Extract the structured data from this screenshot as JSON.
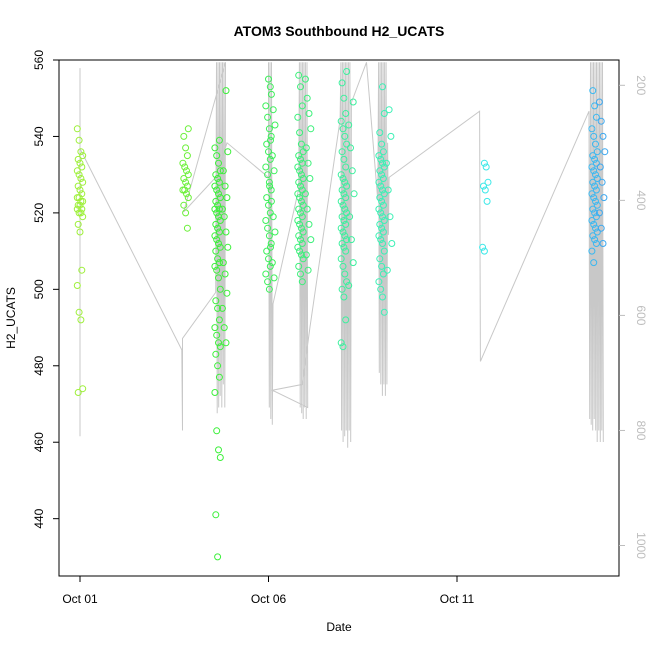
{
  "chart_data": {
    "type": "scatter",
    "title": "ATOM3 Southbound H2_UCATS",
    "xlabel": "Date",
    "ylabel": "H2_UCATS",
    "x_axis": {
      "unit": "days",
      "range": [
        "Sep 30 13:00",
        "Oct 15 23:00"
      ],
      "ticks": [
        {
          "label": "Oct 01",
          "day": 1
        },
        {
          "label": "Oct 06",
          "day": 6
        },
        {
          "label": "Oct 11",
          "day": 11
        }
      ]
    },
    "y_axis": {
      "range": [
        425,
        560
      ],
      "ticks": [
        440,
        460,
        480,
        500,
        520,
        540,
        560
      ]
    },
    "y_axis_right": {
      "label": "",
      "reversed": true,
      "range": [
        1053,
        156
      ],
      "ticks": [
        200,
        400,
        600,
        800,
        1000
      ]
    },
    "point_style": "open-circle",
    "color_scale": "color varies by date (yellow-green → green → cyan → blue)",
    "point_groups": [
      {
        "x": 1.0,
        "color": "#9ef03a",
        "y": [
          542,
          539,
          536,
          535,
          534,
          533,
          532,
          531,
          530,
          529,
          528,
          527,
          526,
          525,
          524,
          524,
          523,
          523,
          522,
          522,
          521,
          521,
          520,
          520,
          519,
          517,
          515,
          505,
          501,
          494,
          492,
          474,
          473
        ]
      },
      {
        "x": 3.8,
        "color": "#6cf03a",
        "y": [
          542,
          540,
          537,
          535,
          533,
          532,
          531,
          530,
          529,
          528,
          527,
          526,
          526,
          525,
          524,
          522,
          520,
          516
        ]
      },
      {
        "x": 4.65,
        "color": "#3cf03a",
        "y": [
          539,
          537,
          535,
          533,
          531,
          530,
          529,
          528,
          527,
          526,
          525,
          524,
          523,
          522,
          521,
          521,
          520,
          519,
          518,
          517,
          516,
          515,
          514,
          513,
          512,
          511,
          510,
          508,
          507,
          506,
          505,
          503,
          500,
          497,
          495,
          492,
          490,
          488,
          486,
          485,
          483,
          480,
          477,
          473,
          463,
          458,
          456,
          441,
          430
        ]
      },
      {
        "x": 4.85,
        "color": "#3cf03a",
        "y": [
          552,
          536,
          531,
          527,
          524,
          521,
          519,
          515,
          511,
          507,
          504,
          499,
          495,
          490,
          486
        ]
      },
      {
        "x": 6.0,
        "color": "#3cf05a",
        "y": [
          555,
          553,
          548,
          545,
          542,
          540,
          538,
          536,
          534,
          532,
          530,
          528,
          526,
          524,
          522,
          520,
          518,
          516,
          514,
          512,
          510,
          508,
          506,
          504,
          502,
          500
        ]
      },
      {
        "x": 6.1,
        "color": "#3cf05a",
        "y": [
          551,
          547,
          543,
          539,
          535,
          531,
          527,
          523,
          519,
          515,
          511,
          507,
          503
        ]
      },
      {
        "x": 6.85,
        "color": "#3cf07a",
        "y": [
          556,
          553,
          548,
          545,
          541,
          538,
          536,
          535,
          534,
          533,
          532,
          531,
          530,
          529,
          528,
          527,
          526,
          525,
          524,
          523,
          522,
          521,
          520,
          519,
          518,
          517,
          516,
          515,
          514,
          513,
          512,
          511,
          510,
          509,
          508,
          506,
          504,
          502
        ]
      },
      {
        "x": 7.05,
        "color": "#3cf07a",
        "y": [
          555,
          550,
          546,
          542,
          537,
          533,
          529,
          525,
          521,
          517,
          513,
          509,
          505
        ]
      },
      {
        "x": 8.0,
        "color": "#3cf09e",
        "y": [
          557,
          554,
          550,
          546,
          544,
          542,
          540,
          538,
          536,
          534,
          532,
          530,
          529,
          528,
          527,
          526,
          525,
          524,
          523,
          522,
          521,
          520,
          519,
          518,
          517,
          516,
          515,
          514,
          513,
          512,
          511,
          510,
          508,
          506,
          504,
          502,
          500,
          498,
          492,
          486,
          485
        ]
      },
      {
        "x": 8.2,
        "color": "#3cf09e",
        "y": [
          549,
          543,
          537,
          531,
          525,
          519,
          513,
          507,
          501
        ]
      },
      {
        "x": 9.0,
        "color": "#3cf0b5",
        "y": [
          553,
          546,
          541,
          538,
          536,
          535,
          534,
          533,
          532,
          531,
          530,
          529,
          528,
          527,
          526,
          525,
          524,
          523,
          522,
          521,
          520,
          519,
          518,
          517,
          516,
          515,
          514,
          513,
          512,
          510,
          508,
          506,
          504,
          502,
          500,
          498,
          494
        ]
      },
      {
        "x": 9.2,
        "color": "#3cf0b5",
        "y": [
          547,
          540,
          533,
          526,
          519,
          512,
          505
        ]
      },
      {
        "x": 11.75,
        "color": "#3ce8e8",
        "y": [
          533,
          532,
          528,
          527,
          526,
          523,
          511,
          510
        ]
      },
      {
        "x": 14.65,
        "color": "#3cb8f0",
        "y": [
          552,
          548,
          545,
          542,
          540,
          538,
          536,
          535,
          534,
          533,
          532,
          531,
          530,
          529,
          528,
          527,
          526,
          525,
          524,
          523,
          522,
          521,
          520,
          519,
          518,
          517,
          516,
          515,
          514,
          513,
          512,
          510,
          507
        ]
      },
      {
        "x": 14.85,
        "color": "#3ca8f0",
        "y": [
          549,
          544,
          540,
          536,
          532,
          528,
          524,
          520,
          516,
          512
        ]
      }
    ],
    "pressure_trace": {
      "color": "#c8c8c8",
      "axis": "right",
      "description": "aircraft pressure profile (hPa) over time",
      "vertices": [
        [
          1.0,
          170
        ],
        [
          1.0,
          810
        ],
        [
          1.0,
          310
        ],
        [
          3.7,
          660
        ],
        [
          3.72,
          800
        ],
        [
          3.72,
          640
        ],
        [
          4.6,
          560
        ],
        [
          4.62,
          160
        ],
        [
          4.64,
          770
        ],
        [
          4.66,
          160
        ],
        [
          4.68,
          760
        ],
        [
          4.7,
          160
        ],
        [
          4.72,
          740
        ],
        [
          4.74,
          160
        ],
        [
          4.76,
          760
        ],
        [
          4.78,
          160
        ],
        [
          4.8,
          720
        ],
        [
          4.82,
          160
        ],
        [
          4.84,
          760
        ],
        [
          4.86,
          160
        ],
        [
          3.75,
          420
        ],
        [
          4.6,
          360
        ],
        [
          4.9,
          300
        ],
        [
          6.0,
          360
        ],
        [
          6.0,
          160
        ],
        [
          6.02,
          760
        ],
        [
          6.04,
          160
        ],
        [
          6.06,
          780
        ],
        [
          6.08,
          160
        ],
        [
          6.1,
          790
        ],
        [
          6.12,
          580
        ],
        [
          6.8,
          380
        ],
        [
          6.82,
          160
        ],
        [
          6.84,
          760
        ],
        [
          6.86,
          160
        ],
        [
          6.88,
          770
        ],
        [
          6.9,
          160
        ],
        [
          6.92,
          780
        ],
        [
          6.94,
          160
        ],
        [
          6.96,
          760
        ],
        [
          6.98,
          160
        ],
        [
          7.0,
          780
        ],
        [
          7.02,
          160
        ],
        [
          7.04,
          760
        ],
        [
          6.1,
          730
        ],
        [
          6.9,
          720
        ],
        [
          7.1,
          620
        ],
        [
          7.9,
          260
        ],
        [
          7.92,
          160
        ],
        [
          7.94,
          800
        ],
        [
          7.96,
          160
        ],
        [
          7.98,
          820
        ],
        [
          8.0,
          160
        ],
        [
          8.02,
          810
        ],
        [
          8.04,
          160
        ],
        [
          8.06,
          800
        ],
        [
          8.08,
          160
        ],
        [
          8.1,
          830
        ],
        [
          8.12,
          160
        ],
        [
          8.14,
          800
        ],
        [
          8.16,
          160
        ],
        [
          8.18,
          820
        ],
        [
          8.2,
          230
        ],
        [
          8.6,
          160
        ],
        [
          8.9,
          400
        ],
        [
          8.92,
          160
        ],
        [
          8.94,
          700
        ],
        [
          8.96,
          160
        ],
        [
          8.98,
          720
        ],
        [
          9.0,
          160
        ],
        [
          9.02,
          740
        ],
        [
          9.04,
          160
        ],
        [
          9.06,
          720
        ],
        [
          9.08,
          160
        ],
        [
          9.1,
          740
        ],
        [
          9.12,
          160
        ],
        [
          9.14,
          720
        ],
        [
          9.16,
          300
        ],
        [
          9.18,
          460
        ],
        [
          9.2,
          360
        ],
        [
          11.6,
          245
        ],
        [
          11.62,
          680
        ],
        [
          14.5,
          245
        ],
        [
          14.52,
          780
        ],
        [
          14.54,
          160
        ],
        [
          14.56,
          790
        ],
        [
          14.58,
          160
        ],
        [
          14.6,
          800
        ],
        [
          14.62,
          160
        ],
        [
          14.64,
          780
        ],
        [
          14.66,
          160
        ],
        [
          14.68,
          800
        ],
        [
          14.7,
          160
        ],
        [
          14.72,
          820
        ],
        [
          14.74,
          160
        ],
        [
          14.76,
          800
        ],
        [
          14.78,
          160
        ],
        [
          14.8,
          820
        ],
        [
          14.82,
          160
        ],
        [
          14.84,
          800
        ],
        [
          14.86,
          160
        ],
        [
          14.88,
          820
        ]
      ]
    },
    "grid": false,
    "legend": "none",
    "box": true,
    "colors": {
      "axis": "#000000",
      "right_axis": "#bdbdbd",
      "trace": "#c8c8c8"
    }
  }
}
